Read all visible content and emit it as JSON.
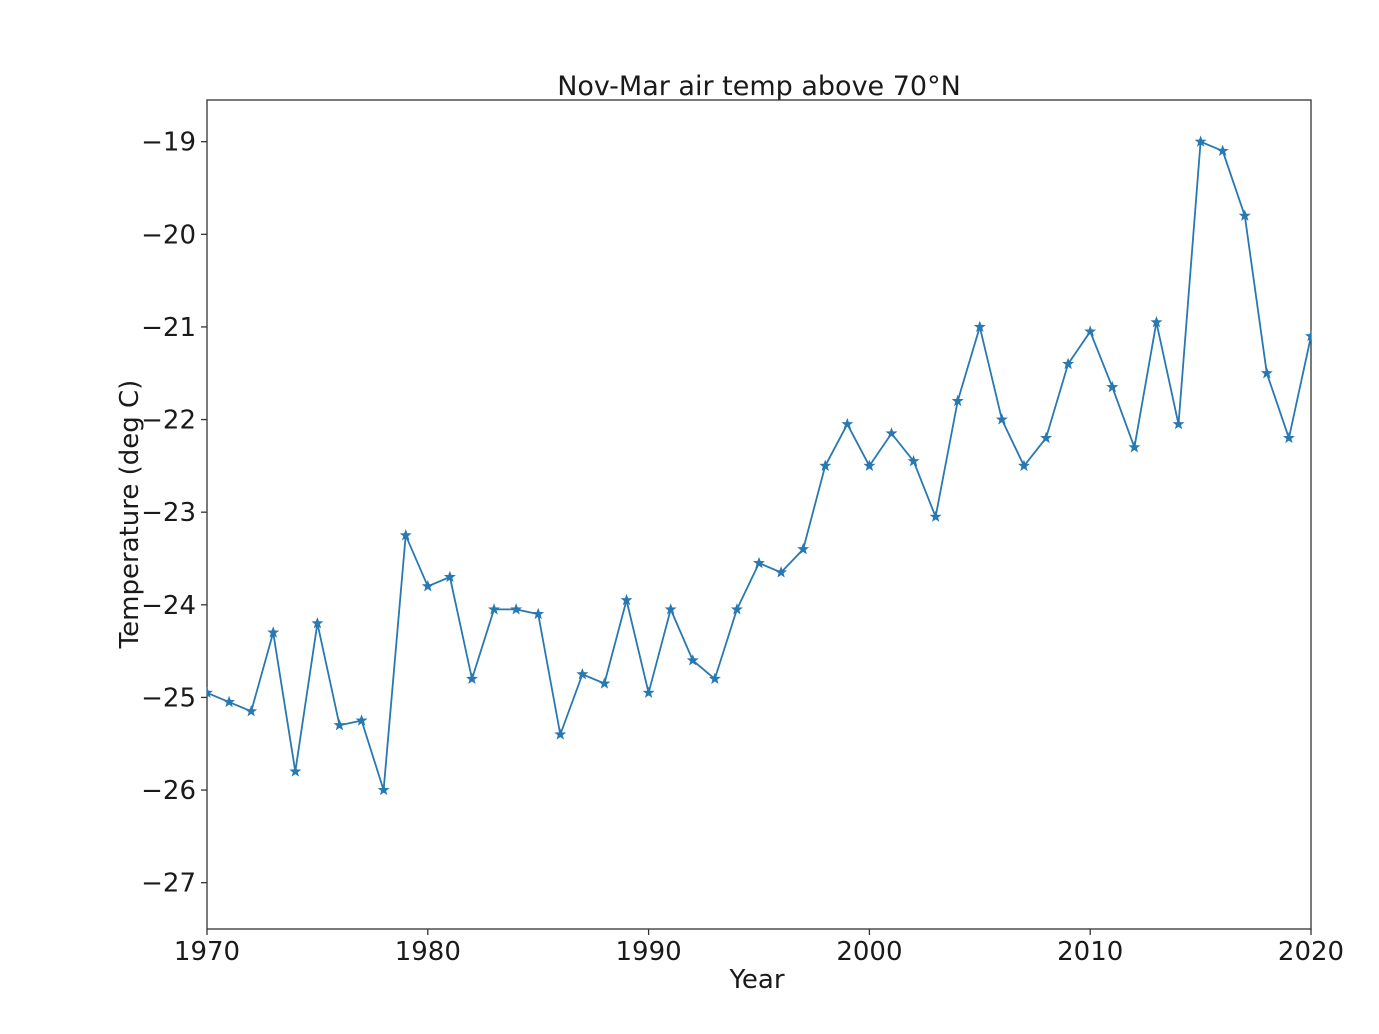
{
  "chart_data": {
    "type": "line",
    "title": "Nov-Mar air temp above 70°N",
    "xlabel": "Year",
    "ylabel": "Temperature (deg C)",
    "x": [
      1970,
      1971,
      1972,
      1973,
      1974,
      1975,
      1976,
      1977,
      1978,
      1979,
      1980,
      1981,
      1982,
      1983,
      1984,
      1985,
      1986,
      1987,
      1988,
      1989,
      1990,
      1991,
      1992,
      1993,
      1994,
      1995,
      1996,
      1997,
      1998,
      1999,
      2000,
      2001,
      2002,
      2003,
      2004,
      2005,
      2006,
      2007,
      2008,
      2009,
      2010,
      2011,
      2012,
      2013,
      2014,
      2015,
      2016,
      2017,
      2018,
      2019,
      2020
    ],
    "y": [
      -24.95,
      -25.05,
      -25.15,
      -24.3,
      -25.8,
      -24.2,
      -25.3,
      -25.25,
      -26.0,
      -23.25,
      -23.8,
      -23.7,
      -24.8,
      -24.05,
      -24.05,
      -24.1,
      -25.4,
      -24.75,
      -24.85,
      -23.95,
      -24.95,
      -24.05,
      -24.6,
      -24.8,
      -24.05,
      -23.55,
      -23.65,
      -23.4,
      -22.5,
      -22.05,
      -22.5,
      -22.15,
      -22.45,
      -23.05,
      -21.8,
      -21.0,
      -22.0,
      -22.5,
      -22.2,
      -21.4,
      -21.05,
      -21.65,
      -22.3,
      -20.95,
      -22.05,
      -19.0,
      -19.1,
      -19.8,
      -21.5,
      -22.2,
      -21.1
    ],
    "xlim": [
      1970,
      2020
    ],
    "ylim": [
      -27.5,
      -18.55
    ],
    "xticks": [
      1970,
      1980,
      1990,
      2000,
      2010,
      2020
    ],
    "yticks": [
      -19,
      -20,
      -21,
      -22,
      -23,
      -24,
      -25,
      -26,
      -27
    ],
    "grid": false,
    "legend_position": "none",
    "marker": "star",
    "line_color": "#2878b1",
    "axis_color": "#333333",
    "text_color": "#1a1a1a",
    "background_color": "#ffffff"
  }
}
